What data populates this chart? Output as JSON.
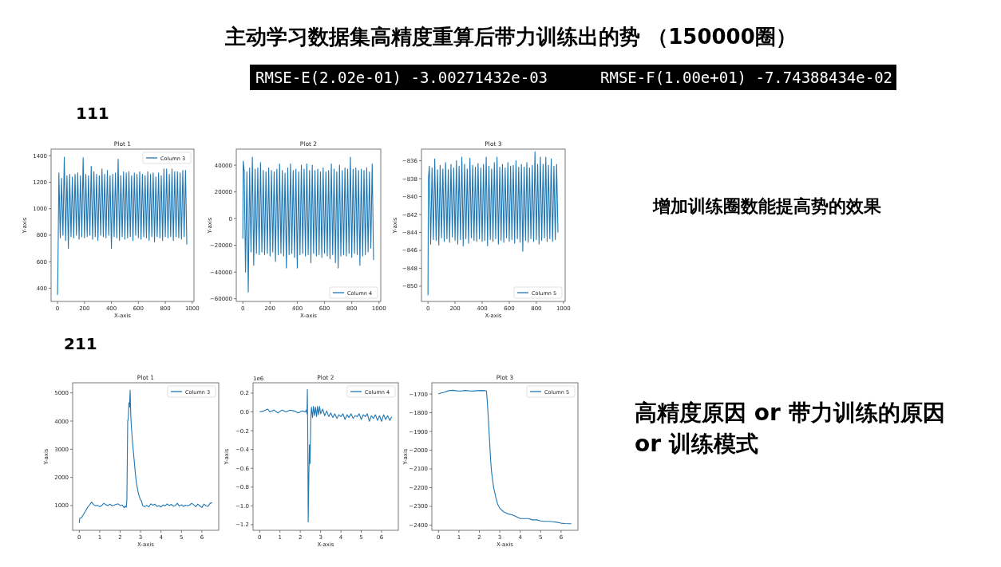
{
  "chart_data": [
    {
      "type": "other",
      "title": "主动学习数据集高精度重算后带力训练出的势 （150000圈）",
      "annotations": [
        "RMSE-E(2.02e-01) -3.00271432e-03",
        "RMSE-F(1.00e+01) -7.74388434e-02",
        "111",
        "增加训练圈数能提高势的效果",
        "211",
        "高精度原因 or  带力训练的原因",
        "or  训练模式"
      ]
    },
    {
      "type": "line",
      "title": "Plot 1",
      "xlabel": "X-axis",
      "ylabel": "Y-axis",
      "legend": "top right",
      "xlim": [
        -48,
        1013
      ],
      "xticks": [
        0,
        200,
        400,
        600,
        800,
        1000
      ],
      "ylim": [
        300,
        1450
      ],
      "yticks": [
        400,
        600,
        800,
        1000,
        1200,
        1400
      ],
      "series": [
        {
          "name": "Column 3",
          "color": "#1f77b4",
          "x": [
            0,
            3,
            10,
            20,
            30,
            40,
            50,
            60,
            70,
            80,
            90,
            100,
            110,
            120,
            130,
            140,
            150,
            160,
            170,
            180,
            190,
            200,
            210,
            220,
            230,
            240,
            250,
            260,
            270,
            280,
            290,
            300,
            310,
            320,
            330,
            340,
            350,
            360,
            370,
            380,
            390,
            400,
            410,
            420,
            430,
            440,
            450,
            460,
            470,
            480,
            490,
            500,
            510,
            520,
            530,
            540,
            550,
            560,
            570,
            580,
            590,
            600,
            610,
            620,
            630,
            640,
            650,
            660,
            670,
            680,
            690,
            700,
            710,
            720,
            730,
            740,
            750,
            760,
            770,
            780,
            790,
            800,
            810,
            820,
            830,
            840,
            850,
            860,
            870,
            880,
            890,
            900,
            910,
            920,
            930,
            940,
            950,
            960
          ],
          "values": [
            350,
            570,
            1270,
            780,
            1230,
            800,
            1390,
            760,
            1250,
            700,
            1260,
            790,
            1240,
            780,
            1260,
            800,
            1270,
            770,
            1250,
            790,
            1385,
            780,
            1260,
            790,
            1250,
            800,
            1320,
            770,
            1280,
            790,
            1260,
            760,
            1250,
            800,
            1300,
            790,
            1260,
            780,
            1290,
            800,
            1250,
            700,
            1260,
            790,
            1270,
            780,
            1375,
            760,
            1250,
            790,
            1280,
            770,
            1270,
            780,
            1280,
            790,
            1250,
            760,
            1270,
            800,
            1260,
            780,
            1280,
            770,
            1260,
            790,
            1250,
            780,
            1280,
            760,
            1260,
            790,
            1270,
            750,
            1240,
            790,
            1270,
            780,
            1250,
            760,
            1300,
            790,
            1300,
            780,
            1260,
            790,
            1300,
            760,
            1280,
            790,
            1280,
            780,
            1270,
            770,
            1290,
            790,
            1290,
            730
          ]
        }
      ]
    },
    {
      "type": "line",
      "title": "Plot 2",
      "xlabel": "X-axis",
      "ylabel": "Y-axis",
      "legend": "bottom right",
      "xlim": [
        -48,
        1013
      ],
      "xticks": [
        0,
        200,
        400,
        600,
        800,
        1000
      ],
      "ylim": [
        -62000,
        52000
      ],
      "yticks": [
        -60000,
        -40000,
        -20000,
        0,
        20000,
        40000
      ],
      "series": [
        {
          "name": "Column 4",
          "color": "#1f77b4",
          "x": [
            0,
            3,
            10,
            20,
            30,
            40,
            50,
            60,
            70,
            80,
            90,
            100,
            110,
            120,
            130,
            140,
            150,
            160,
            170,
            180,
            190,
            200,
            210,
            220,
            230,
            240,
            250,
            260,
            270,
            280,
            290,
            300,
            310,
            320,
            330,
            340,
            350,
            360,
            370,
            380,
            390,
            400,
            410,
            420,
            430,
            440,
            450,
            460,
            470,
            480,
            490,
            500,
            510,
            520,
            530,
            540,
            550,
            560,
            570,
            580,
            590,
            600,
            610,
            620,
            630,
            640,
            650,
            660,
            670,
            680,
            690,
            700,
            710,
            720,
            730,
            740,
            750,
            760,
            770,
            780,
            790,
            800,
            810,
            820,
            830,
            840,
            850,
            860,
            870,
            880,
            890,
            900,
            910,
            920,
            930,
            940,
            950,
            960
          ],
          "values": [
            -15000,
            43000,
            36000,
            -40000,
            35000,
            -55000,
            38000,
            -25000,
            46000,
            -35000,
            37000,
            -26000,
            38000,
            -27000,
            42000,
            -25000,
            36000,
            -27000,
            35000,
            -26000,
            38000,
            -28000,
            36000,
            -25000,
            35000,
            -32000,
            37000,
            -27000,
            41000,
            -26000,
            36000,
            -28000,
            34000,
            -37000,
            38000,
            -27000,
            41000,
            -26000,
            36000,
            -29000,
            37000,
            -37000,
            35000,
            -27000,
            40000,
            -26000,
            37000,
            -28000,
            41000,
            -27000,
            36000,
            -33000,
            40000,
            -26000,
            36000,
            -28000,
            37000,
            -27000,
            35000,
            -29000,
            38000,
            -26000,
            35000,
            -28000,
            36000,
            -30000,
            41000,
            -27000,
            37000,
            -33000,
            35000,
            -37000,
            40000,
            -28000,
            36000,
            -27000,
            38000,
            -28000,
            37000,
            -26000,
            46000,
            -29000,
            37000,
            -26000,
            38000,
            -27000,
            36000,
            -35000,
            37000,
            -28000,
            36000,
            -27000,
            38000,
            -25000,
            35000,
            -22000,
            41000,
            -31000
          ]
        }
      ]
    },
    {
      "type": "line",
      "title": "Plot 3",
      "xlabel": "X-axis",
      "ylabel": "Y-axis",
      "legend": "bottom right",
      "xlim": [
        -48,
        1013
      ],
      "xticks": [
        0,
        200,
        400,
        600,
        800,
        1000
      ],
      "ylim": [
        -851.7,
        -834.7
      ],
      "yticks": [
        -850,
        -848,
        -846,
        -844,
        -842,
        -840,
        -838,
        -836
      ],
      "series": [
        {
          "name": "Column 5",
          "color": "#1f77b4",
          "x": [
            0,
            3,
            10,
            20,
            30,
            40,
            50,
            60,
            70,
            80,
            90,
            100,
            110,
            120,
            130,
            140,
            150,
            160,
            170,
            180,
            190,
            200,
            210,
            220,
            230,
            240,
            250,
            260,
            270,
            280,
            290,
            300,
            310,
            320,
            330,
            340,
            350,
            360,
            370,
            380,
            390,
            400,
            410,
            420,
            430,
            440,
            450,
            460,
            470,
            480,
            490,
            500,
            510,
            520,
            530,
            540,
            550,
            560,
            570,
            580,
            590,
            600,
            610,
            620,
            630,
            640,
            650,
            660,
            670,
            680,
            690,
            700,
            710,
            720,
            730,
            740,
            750,
            760,
            770,
            780,
            790,
            800,
            810,
            820,
            830,
            840,
            850,
            860,
            870,
            880,
            890,
            900,
            910,
            920,
            930,
            940,
            950,
            960
          ],
          "values": [
            -851,
            -838,
            -836.6,
            -845.3,
            -836.8,
            -844.8,
            -835.8,
            -844.9,
            -837.0,
            -845.4,
            -836.5,
            -844.6,
            -836.9,
            -845.0,
            -836.2,
            -844.7,
            -837.0,
            -845.1,
            -836.4,
            -844.5,
            -836.8,
            -844.9,
            -836.0,
            -845.3,
            -836.6,
            -844.8,
            -835.6,
            -845.5,
            -836.4,
            -844.7,
            -836.9,
            -845.2,
            -835.7,
            -844.6,
            -836.5,
            -844.9,
            -836.7,
            -845.0,
            -836.3,
            -844.7,
            -836.8,
            -845.0,
            -836.4,
            -844.9,
            -835.6,
            -845.5,
            -836.6,
            -844.8,
            -836.9,
            -845.0,
            -836.2,
            -844.7,
            -835.6,
            -845.3,
            -836.7,
            -844.9,
            -836.4,
            -845.1,
            -836.8,
            -844.6,
            -836.2,
            -845.0,
            -836.6,
            -844.8,
            -836.5,
            -845.2,
            -836.0,
            -844.7,
            -836.7,
            -845.1,
            -836.4,
            -846.1,
            -836.7,
            -844.9,
            -836.2,
            -845.1,
            -836.8,
            -844.7,
            -836.5,
            -845.0,
            -835.0,
            -844.8,
            -836.4,
            -845.3,
            -835.6,
            -844.9,
            -836.4,
            -844.6,
            -835.6,
            -845.0,
            -836.5,
            -844.7,
            -835.8,
            -845.0,
            -836.6,
            -844.8,
            -836.4,
            -844.0
          ]
        }
      ]
    },
    {
      "type": "line",
      "title": "Plot 1",
      "xlabel": "X-axis",
      "ylabel": "Y-axis",
      "legend": "top right",
      "xlim": [
        -0.325,
        6.825
      ],
      "xticks": [
        0,
        1,
        2,
        3,
        4,
        5,
        6
      ],
      "ylim": [
        120,
        5360
      ],
      "yticks": [
        1000,
        2000,
        3000,
        4000,
        5000
      ],
      "series": [
        {
          "name": "Column 3",
          "color": "#1f77b4",
          "x": [
            0,
            0.02,
            0.1,
            0.2,
            0.3,
            0.4,
            0.5,
            0.6,
            0.65,
            0.7,
            0.8,
            0.9,
            1.0,
            1.1,
            1.2,
            1.3,
            1.4,
            1.5,
            1.6,
            1.7,
            1.8,
            1.9,
            2.0,
            2.1,
            2.2,
            2.25,
            2.3,
            2.33,
            2.37,
            2.4,
            2.43,
            2.46,
            2.49,
            2.52,
            2.55,
            2.6,
            2.65,
            2.7,
            2.75,
            2.8,
            2.85,
            2.9,
            2.95,
            3.0,
            3.05,
            3.1,
            3.2,
            3.3,
            3.4,
            3.5,
            3.6,
            3.7,
            3.8,
            3.9,
            4.0,
            4.1,
            4.2,
            4.3,
            4.4,
            4.5,
            4.6,
            4.7,
            4.8,
            4.9,
            5.0,
            5.1,
            5.2,
            5.3,
            5.4,
            5.5,
            5.6,
            5.7,
            5.8,
            5.9,
            6.0,
            6.1,
            6.2,
            6.3,
            6.4,
            6.5
          ],
          "values": [
            380,
            550,
            560,
            680,
            800,
            930,
            1020,
            1120,
            1080,
            1030,
            990,
            1010,
            960,
            1000,
            1080,
            1030,
            1000,
            1050,
            990,
            1010,
            1040,
            1060,
            1000,
            1020,
            920,
            980,
            940,
            1200,
            4000,
            4100,
            4650,
            4500,
            5100,
            4200,
            3800,
            3300,
            2900,
            2500,
            2100,
            1800,
            1600,
            1400,
            1300,
            1200,
            1150,
            1000,
            960,
            1010,
            950,
            1060,
            1010,
            1050,
            970,
            1000,
            950,
            1020,
            990,
            1060,
            1000,
            1040,
            980,
            1000,
            1080,
            980,
            1030,
            970,
            1010,
            990,
            1020,
            1080,
            1030,
            960,
            1050,
            990,
            930,
            1050,
            1000,
            970,
            1080,
            1100
          ]
        }
      ]
    },
    {
      "type": "line",
      "title": "Plot 2",
      "xlabel": "X-axis",
      "ylabel": "Y-axis",
      "legend": "top right",
      "annotations": [
        "1e6"
      ],
      "xlim": [
        -0.325,
        6.825
      ],
      "xticks": [
        0,
        1,
        2,
        3,
        4,
        5,
        6
      ],
      "ylim": [
        -1.26,
        0.31
      ],
      "yticks": [
        -1.2,
        {
          "value": -1,
          "label": "−1.0"
        },
        -0.8,
        -0.6,
        -0.4,
        -0.2,
        {
          "value": 0,
          "label": "0.0"
        },
        0.2
      ],
      "series": [
        {
          "name": "Column 4",
          "color": "#1f77b4",
          "x": [
            0,
            0.2,
            0.4,
            0.5,
            0.7,
            0.9,
            1.1,
            1.3,
            1.5,
            1.7,
            1.9,
            2.1,
            2.25,
            2.3,
            2.33,
            2.35,
            2.37,
            2.39,
            2.42,
            2.45,
            2.48,
            2.52,
            2.55,
            2.6,
            2.65,
            2.7,
            2.75,
            2.8,
            2.85,
            2.9,
            2.95,
            3.0,
            3.1,
            3.2,
            3.3,
            3.4,
            3.5,
            3.6,
            3.7,
            3.8,
            3.9,
            4.0,
            4.1,
            4.2,
            4.3,
            4.4,
            4.5,
            4.6,
            4.7,
            4.8,
            4.9,
            5.0,
            5.1,
            5.2,
            5.3,
            5.4,
            5.5,
            5.6,
            5.7,
            5.8,
            5.9,
            6.0,
            6.1,
            6.2,
            6.3,
            6.4,
            6.5
          ],
          "values": [
            0.0,
            0.01,
            0.03,
            0.0,
            0.02,
            -0.01,
            0.02,
            0.0,
            0.02,
            0.01,
            -0.01,
            0.01,
            0.0,
            0.02,
            -0.02,
            0.24,
            -0.3,
            -1.17,
            -0.7,
            -0.35,
            -0.55,
            -0.05,
            0.05,
            -0.06,
            0.06,
            -0.04,
            0.05,
            -0.05,
            0.06,
            -0.03,
            0.06,
            -0.02,
            0.03,
            -0.04,
            0.01,
            -0.05,
            -0.01,
            -0.06,
            -0.02,
            -0.07,
            -0.03,
            -0.05,
            -0.02,
            -0.08,
            -0.03,
            -0.06,
            -0.02,
            -0.07,
            -0.04,
            -0.05,
            -0.02,
            -0.08,
            -0.03,
            -0.05,
            -0.02,
            -0.1,
            -0.04,
            -0.07,
            -0.03,
            -0.09,
            -0.04,
            -0.1,
            -0.03,
            -0.08,
            -0.04,
            -0.09,
            -0.05
          ]
        }
      ]
    },
    {
      "type": "line",
      "title": "Plot 3",
      "xlabel": "X-axis",
      "ylabel": "Y-axis",
      "legend": "top right",
      "xlim": [
        -0.325,
        6.825
      ],
      "xticks": [
        0,
        1,
        2,
        3,
        4,
        5,
        6
      ],
      "ylim": [
        -2428,
        -1640
      ],
      "yticks": [
        -2400,
        -2300,
        -2200,
        -2100,
        -2000,
        -1900,
        -1800,
        -1700
      ],
      "series": [
        {
          "name": "Column 5",
          "color": "#1f77b4",
          "x": [
            0,
            0.1,
            0.3,
            0.5,
            0.7,
            0.9,
            1.1,
            1.3,
            1.5,
            1.7,
            1.9,
            2.1,
            2.3,
            2.35,
            2.4,
            2.45,
            2.5,
            2.55,
            2.6,
            2.7,
            2.8,
            2.9,
            3.0,
            3.2,
            3.4,
            3.6,
            3.8,
            4.0,
            4.2,
            4.4,
            4.6,
            4.8,
            5.0,
            5.2,
            5.4,
            5.6,
            5.8,
            6.0,
            6.2,
            6.4,
            6.5
          ],
          "values": [
            -1700,
            -1695,
            -1690,
            -1682,
            -1680,
            -1683,
            -1684,
            -1681,
            -1683,
            -1684,
            -1682,
            -1681,
            -1682,
            -1685,
            -1760,
            -1850,
            -1950,
            -2050,
            -2120,
            -2200,
            -2250,
            -2290,
            -2310,
            -2330,
            -2340,
            -2345,
            -2355,
            -2365,
            -2365,
            -2365,
            -2372,
            -2372,
            -2378,
            -2380,
            -2380,
            -2382,
            -2385,
            -2390,
            -2392,
            -2393,
            -2393
          ]
        }
      ]
    }
  ]
}
